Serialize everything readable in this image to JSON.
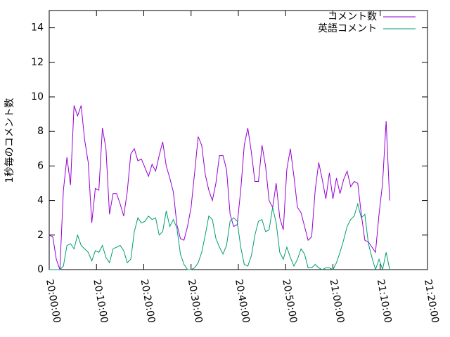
{
  "chart_data": {
    "type": "line",
    "ylabel": "1秒毎のコメント数",
    "x": [
      "20:00:00",
      "20:00:45",
      "20:01:30",
      "20:02:15",
      "20:03:00",
      "20:03:45",
      "20:04:30",
      "20:05:15",
      "20:06:00",
      "20:06:45",
      "20:07:30",
      "20:08:15",
      "20:09:00",
      "20:09:45",
      "20:10:30",
      "20:11:15",
      "20:12:00",
      "20:12:45",
      "20:13:30",
      "20:14:15",
      "20:15:00",
      "20:15:45",
      "20:16:30",
      "20:17:15",
      "20:18:00",
      "20:18:45",
      "20:19:30",
      "20:20:15",
      "20:21:00",
      "20:21:45",
      "20:22:30",
      "20:23:15",
      "20:24:00",
      "20:24:45",
      "20:25:30",
      "20:26:15",
      "20:27:00",
      "20:27:45",
      "20:28:30",
      "20:29:15",
      "20:30:00",
      "20:30:45",
      "20:31:30",
      "20:32:15",
      "20:33:00",
      "20:33:45",
      "20:34:30",
      "20:35:15",
      "20:36:00",
      "20:36:45",
      "20:37:30",
      "20:38:15",
      "20:39:00",
      "20:39:45",
      "20:40:30",
      "20:41:15",
      "20:42:00",
      "20:42:45",
      "20:43:30",
      "20:44:15",
      "20:45:00",
      "20:45:45",
      "20:46:30",
      "20:47:15",
      "20:48:00",
      "20:48:45",
      "20:49:30",
      "20:50:15",
      "20:51:00",
      "20:51:45",
      "20:52:30",
      "20:53:15",
      "20:54:00",
      "20:54:45",
      "20:55:30",
      "20:56:15",
      "20:57:00",
      "20:57:45",
      "20:58:30",
      "20:59:15",
      "21:00:00",
      "21:00:45",
      "21:01:30",
      "21:02:15",
      "21:03:00",
      "21:03:45",
      "21:04:30",
      "21:05:15",
      "21:06:00",
      "21:06:45",
      "21:07:30",
      "21:08:15",
      "21:09:00",
      "21:09:45",
      "21:10:30",
      "21:11:15",
      "21:12:00"
    ],
    "series": [
      {
        "name": "コメント数",
        "color": "#9400d3",
        "values": [
          2.0,
          1.9,
          0.6,
          0.0,
          4.6,
          6.5,
          4.9,
          9.5,
          8.9,
          9.5,
          7.5,
          6.2,
          2.7,
          4.7,
          4.6,
          8.2,
          7.0,
          3.2,
          4.4,
          4.4,
          3.8,
          3.1,
          4.5,
          6.7,
          7.0,
          6.3,
          6.4,
          5.9,
          5.4,
          6.1,
          5.7,
          6.6,
          7.4,
          6.0,
          5.3,
          4.5,
          2.6,
          1.8,
          1.7,
          2.5,
          3.6,
          5.6,
          7.7,
          7.2,
          5.5,
          4.6,
          4.0,
          5.0,
          6.6,
          6.6,
          5.8,
          3.2,
          2.5,
          2.6,
          4.6,
          7.2,
          8.2,
          6.8,
          5.1,
          5.1,
          7.2,
          6.0,
          4.0,
          3.6,
          5.0,
          3.0,
          2.3,
          5.8,
          7.0,
          5.4,
          3.6,
          3.3,
          2.5,
          1.7,
          1.9,
          4.6,
          6.2,
          5.2,
          4.1,
          5.6,
          4.1,
          5.3,
          4.4,
          5.2,
          5.7,
          4.8,
          5.1,
          5.0,
          3.2,
          1.7,
          1.6,
          1.3,
          1.0,
          3.2,
          5.0,
          8.6,
          4.0
        ]
      },
      {
        "name": "英語コメント",
        "color": "#009e73",
        "values": [
          0,
          0,
          0,
          0,
          0.2,
          1.4,
          1.5,
          1.2,
          2.0,
          1.4,
          1.2,
          1.0,
          0.5,
          1.1,
          1.0,
          1.4,
          0.7,
          0.4,
          1.2,
          1.3,
          1.4,
          1.1,
          0.4,
          0.6,
          2.2,
          3.0,
          2.7,
          2.8,
          3.1,
          2.9,
          3.0,
          2.0,
          2.2,
          3.4,
          2.5,
          2.9,
          2.4,
          0.9,
          0.3,
          0,
          0,
          0.1,
          0.4,
          1.0,
          2.0,
          3.1,
          2.9,
          1.8,
          1.3,
          0.9,
          1.4,
          2.8,
          3.0,
          2.8,
          1.3,
          0.3,
          0.2,
          0.8,
          2.0,
          2.8,
          2.9,
          2.2,
          2.3,
          3.6,
          2.7,
          1.0,
          0.6,
          1.3,
          0.7,
          0.2,
          0.6,
          1.2,
          0.9,
          0.1,
          0.1,
          0.3,
          0.1,
          0,
          0.1,
          0.1,
          0,
          0.4,
          1.0,
          1.7,
          2.5,
          2.9,
          3.1,
          3.8,
          3.0,
          3.2,
          1.5,
          0.7,
          0,
          0.6,
          0,
          1.0,
          0
        ]
      }
    ],
    "xlim": [
      "20:00:00",
      "21:20:00"
    ],
    "xticks": [
      "20:00:00",
      "20:10:00",
      "20:20:00",
      "20:30:00",
      "20:40:00",
      "20:50:00",
      "21:00:00",
      "21:10:00",
      "21:20:00"
    ],
    "ylim": [
      0,
      15
    ],
    "yticks": [
      0,
      2,
      4,
      6,
      8,
      10,
      12,
      14
    ],
    "grid": false,
    "legend": "top-right"
  }
}
